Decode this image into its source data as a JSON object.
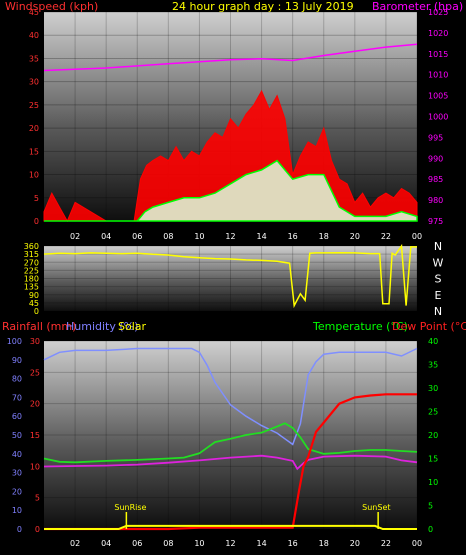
{
  "header": {
    "title": "24 hour graph day : 13 July 2019",
    "wind_label": "Windspeed (kph)",
    "baro_label": "Barometer (hpa)",
    "rain_label": "Rainfall (mm)",
    "humidity_label": "Humidity (%)",
    "solar_label": "Solar",
    "temp_label": "Temperature (°C)",
    "dew_label": "Dew Point (°C)"
  },
  "colors": {
    "wind": "#ff0000",
    "gust_fill": "#ff0000",
    "wind_avg": "#00ff00",
    "wind_light": "#ddffdd",
    "baro": "#ff00ff",
    "direction": "#ffff00",
    "rain": "#ff0000",
    "humidity": "#7f8fff",
    "solar": "#ffff00",
    "temp": "#22dd22",
    "dew": "#dd22dd",
    "wind_axis": "#ff3030",
    "baro_axis": "#ff00ff",
    "dir_axis": "#ffff00",
    "rain_axis": "#ff3030",
    "hum_axis": "#8080ff",
    "temp_axis": "#00ff00"
  },
  "chart_data": [
    {
      "type": "area",
      "title": "24 hour graph day : 13 July 2019",
      "x_ticks": [
        "02",
        "04",
        "06",
        "08",
        "10",
        "12",
        "14",
        "16",
        "18",
        "20",
        "22",
        "00"
      ],
      "x_range_hours": [
        0,
        24
      ],
      "left_axis": {
        "label": "Windspeed (kph)",
        "range": [
          0,
          45
        ],
        "ticks": [
          0,
          5,
          10,
          15,
          20,
          25,
          30,
          35,
          40,
          45
        ]
      },
      "right_axis": {
        "label": "Barometer (hpa)",
        "range": [
          975,
          1025
        ],
        "ticks": [
          975,
          980,
          985,
          990,
          995,
          1000,
          1005,
          1010,
          1015,
          1020,
          1025
        ]
      },
      "series": [
        {
          "name": "Gust",
          "x": [
            0,
            0.5,
            1,
            1.5,
            2,
            3,
            4,
            5,
            5.8,
            6.2,
            6.6,
            7,
            7.5,
            8,
            8.5,
            9,
            9.5,
            10,
            10.5,
            11,
            11.5,
            12,
            12.5,
            13,
            13.5,
            14,
            14.5,
            15,
            15.5,
            16,
            16.5,
            17,
            17.5,
            18,
            18.5,
            19,
            19.5,
            20,
            20.5,
            21,
            21.5,
            22,
            22.5,
            23,
            23.5,
            24
          ],
          "values": [
            2,
            6,
            3,
            0,
            4,
            2,
            0,
            0,
            0,
            9,
            12,
            13,
            14,
            13,
            16,
            13,
            15,
            14,
            17,
            19,
            18,
            22,
            20,
            23,
            25,
            28,
            24,
            27,
            22,
            10,
            14,
            17,
            16,
            20,
            13,
            9,
            8,
            4,
            6,
            3,
            5,
            6,
            5,
            7,
            6,
            4
          ]
        },
        {
          "name": "Average",
          "x": [
            0,
            2,
            4,
            6,
            6.5,
            7,
            8,
            9,
            10,
            11,
            12,
            13,
            14,
            15,
            16,
            17,
            18,
            19,
            20,
            21,
            22,
            23,
            24
          ],
          "values": [
            0,
            0,
            0,
            0,
            2,
            3,
            4,
            5,
            5,
            6,
            8,
            10,
            11,
            13,
            9,
            10,
            10,
            3,
            1,
            1,
            1,
            2,
            1
          ]
        },
        {
          "name": "Barometer",
          "x": [
            0,
            2,
            4,
            6,
            8,
            10,
            12,
            14,
            16,
            18,
            20,
            22,
            24
          ],
          "values": [
            1011,
            1011.3,
            1011.6,
            1012.1,
            1012.6,
            1013.1,
            1013.6,
            1013.8,
            1013.4,
            1014.6,
            1015.6,
            1016.6,
            1017.3
          ]
        }
      ]
    },
    {
      "type": "line",
      "x_ticks": [],
      "x_range_hours": [
        0,
        24
      ],
      "left_axis": {
        "range": [
          0,
          360
        ],
        "ticks": [
          0,
          45,
          90,
          135,
          180,
          225,
          270,
          315,
          360
        ]
      },
      "right_axis": {
        "ticks": [
          "N",
          "W",
          "S",
          "E",
          "N"
        ]
      },
      "series": [
        {
          "name": "Wind direction",
          "x": [
            0,
            1,
            2,
            3,
            4,
            5,
            6,
            7,
            8,
            9,
            10,
            11,
            12,
            13,
            14,
            15,
            15.8,
            16.1,
            16.5,
            16.8,
            17.1,
            17.5,
            18,
            19,
            20,
            21,
            21.6,
            21.8,
            22.2,
            22.4,
            22.6,
            23,
            23.3,
            23.6,
            24
          ],
          "values": [
            315,
            320,
            318,
            322,
            320,
            318,
            320,
            314,
            310,
            300,
            295,
            290,
            288,
            283,
            280,
            276,
            265,
            30,
            95,
            60,
            320,
            322,
            322,
            323,
            322,
            318,
            318,
            40,
            40,
            320,
            310,
            360,
            30,
            355,
            355
          ]
        }
      ]
    },
    {
      "type": "line",
      "x_ticks": [
        "02",
        "04",
        "06",
        "08",
        "10",
        "12",
        "14",
        "16",
        "18",
        "20",
        "22",
        "00"
      ],
      "x_range_hours": [
        0,
        24
      ],
      "left_axis_humidity": {
        "label": "Humidity (%)",
        "range": [
          0,
          100
        ],
        "ticks": [
          0,
          10,
          20,
          30,
          40,
          50,
          60,
          70,
          80,
          90,
          100
        ]
      },
      "left_axis_rain": {
        "label": "Rainfall (mm)",
        "range": [
          0,
          30
        ],
        "ticks": [
          0,
          5,
          10,
          15,
          20,
          25,
          30
        ]
      },
      "right_axis": {
        "label": "Temperature (°C)",
        "range": [
          0,
          40
        ],
        "ticks": [
          0,
          5,
          10,
          15,
          20,
          25,
          30,
          35,
          40
        ]
      },
      "annotations": [
        {
          "text": "SunRise",
          "x_hour": 5.3
        },
        {
          "text": "SunSet",
          "x_hour": 21.5
        }
      ],
      "series": [
        {
          "name": "Humidity",
          "x": [
            0,
            1,
            2,
            4,
            6,
            8,
            9.5,
            10,
            10.5,
            11,
            12,
            13,
            14,
            15,
            15.5,
            16,
            16.5,
            17,
            17.5,
            18,
            19,
            20,
            21,
            22,
            23,
            24
          ],
          "values": [
            90,
            94,
            95,
            95,
            96,
            96,
            96,
            94,
            87,
            78,
            66,
            60,
            55,
            51,
            48,
            45,
            56,
            82,
            89,
            93,
            94,
            94,
            94,
            94,
            92,
            96
          ]
        },
        {
          "name": "Temperature",
          "x": [
            0,
            1,
            2,
            4,
            6,
            8,
            9,
            10,
            10.5,
            11,
            12,
            13,
            14,
            15,
            15.5,
            16,
            16.5,
            17,
            18,
            19,
            20,
            21,
            22,
            23,
            24
          ],
          "values": [
            15,
            14.3,
            14.2,
            14.5,
            14.7,
            15,
            15.2,
            16.1,
            17.3,
            18.5,
            19.2,
            20,
            20.5,
            21.8,
            22.5,
            21.5,
            19.5,
            17,
            16,
            16.2,
            16.6,
            16.8,
            16.8,
            16.6,
            16.4
          ]
        },
        {
          "name": "Dew Point",
          "x": [
            0,
            2,
            4,
            6,
            8,
            10,
            12,
            14,
            15,
            16,
            16.3,
            16.7,
            17,
            18,
            20,
            22,
            23,
            24
          ],
          "values": [
            13.3,
            13.4,
            13.5,
            13.7,
            14.1,
            14.6,
            15.2,
            15.6,
            15.2,
            14.5,
            12.8,
            14,
            14.7,
            15.4,
            15.6,
            15.4,
            14.6,
            14.2
          ]
        },
        {
          "name": "Rainfall",
          "x": [
            0,
            2,
            4,
            6,
            8,
            10,
            12,
            14,
            15.9,
            16.0,
            16.4,
            16.7,
            17,
            17.5,
            18,
            19,
            20,
            21,
            22,
            23,
            24
          ],
          "values": [
            0,
            0,
            0,
            0,
            0,
            0.2,
            0.2,
            0.2,
            0.2,
            0.2,
            6,
            10,
            11.5,
            15.5,
            17,
            20,
            21,
            21.3,
            21.5,
            21.5,
            21.5
          ]
        },
        {
          "name": "Solar",
          "x": [
            0,
            4.8,
            5.3,
            6,
            21.3,
            21.8,
            24
          ],
          "values": [
            0,
            0,
            0.5,
            0.5,
            0.5,
            0,
            0
          ]
        }
      ]
    }
  ]
}
